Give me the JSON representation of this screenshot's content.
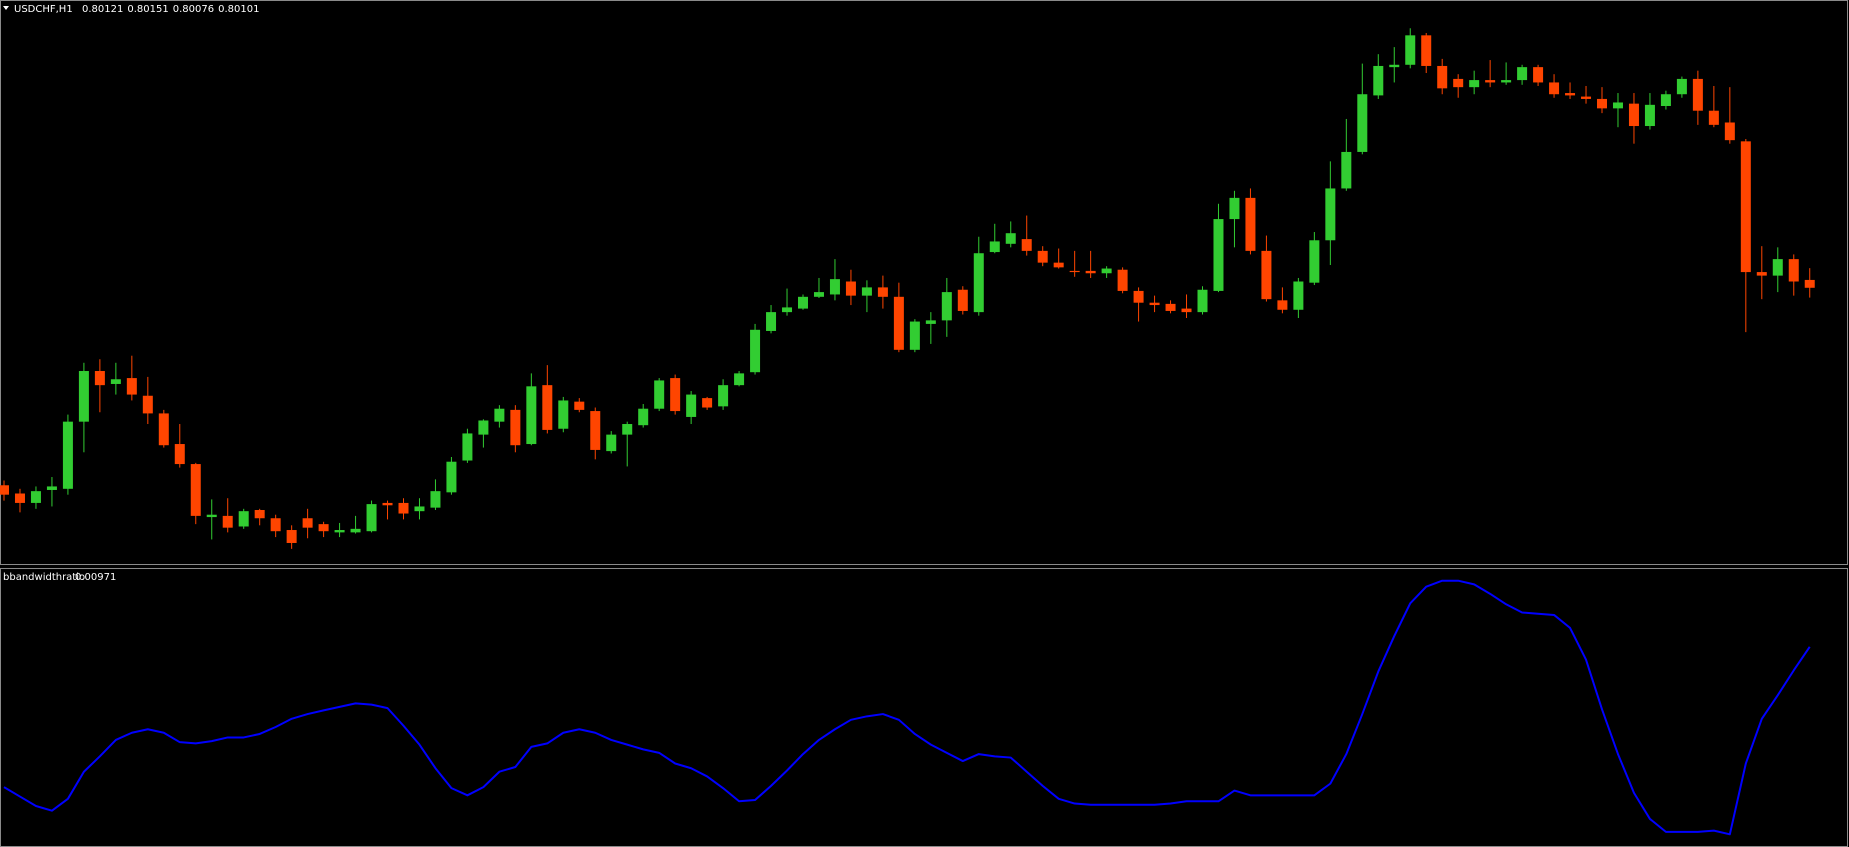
{
  "chart_data": [
    {
      "type": "candlestick",
      "title": "USDCHF,H1",
      "up_color": "#32cd32",
      "down_color": "#ff4500",
      "ylim": [
        0.794,
        0.80834
      ],
      "open": [
        0.79598,
        0.79577,
        0.79553,
        0.79586,
        0.79589,
        0.7976,
        0.79889,
        0.79856,
        0.79871,
        0.79826,
        0.79781,
        0.79703,
        0.79652,
        0.79517,
        0.7952,
        0.79493,
        0.79535,
        0.79514,
        0.79484,
        0.79514,
        0.79499,
        0.79478,
        0.79478,
        0.79481,
        0.79553,
        0.79553,
        0.79532,
        0.79541,
        0.7958,
        0.79661,
        0.79727,
        0.7976,
        0.7979,
        0.79703,
        0.79853,
        0.79742,
        0.79811,
        0.79787,
        0.79685,
        0.79727,
        0.79751,
        0.79793,
        0.79871,
        0.79772,
        0.7982,
        0.79799,
        0.79853,
        0.79886,
        0.79991,
        0.80039,
        0.80048,
        0.80078,
        0.80084,
        0.80117,
        0.80081,
        0.80102,
        0.80078,
        0.79943,
        0.80009,
        0.80018,
        0.80096,
        0.80039,
        0.80192,
        0.80213,
        0.80225,
        0.80195,
        0.80165,
        0.80144,
        0.80144,
        0.80138,
        0.80147,
        0.80093,
        0.80063,
        0.8006,
        0.80048,
        0.80039,
        0.80093,
        0.80276,
        0.8033,
        0.80195,
        0.80069,
        0.80045,
        0.80114,
        0.80222,
        0.80354,
        0.80447,
        0.80591,
        0.80663,
        0.80669,
        0.80744,
        0.80666,
        0.80633,
        0.80612,
        0.8063,
        0.80624,
        0.8063,
        0.80663,
        0.80624,
        0.80597,
        0.80588,
        0.80582,
        0.80558,
        0.8057,
        0.80513,
        0.80564,
        0.80594,
        0.80633,
        0.80552,
        0.80522,
        0.80474,
        0.80141,
        0.80132,
        0.80174,
        0.80121
      ],
      "high": [
        0.7961,
        0.79589,
        0.79595,
        0.79619,
        0.79778,
        0.7991,
        0.79919,
        0.7991,
        0.79928,
        0.79874,
        0.7979,
        0.79754,
        0.79655,
        0.79562,
        0.79565,
        0.79538,
        0.79538,
        0.79523,
        0.79496,
        0.79538,
        0.79505,
        0.79502,
        0.7952,
        0.79559,
        0.79559,
        0.79565,
        0.79565,
        0.79613,
        0.7967,
        0.79742,
        0.79766,
        0.79802,
        0.79802,
        0.79883,
        0.79904,
        0.79823,
        0.7982,
        0.79796,
        0.79736,
        0.7976,
        0.79805,
        0.79871,
        0.7988,
        0.79838,
        0.79823,
        0.79868,
        0.79889,
        0.80009,
        0.80057,
        0.80099,
        0.80084,
        0.80126,
        0.80174,
        0.80147,
        0.8012,
        0.80132,
        0.80114,
        0.80021,
        0.80039,
        0.80126,
        0.80105,
        0.80231,
        0.80264,
        0.8027,
        0.80285,
        0.80207,
        0.80201,
        0.80195,
        0.80195,
        0.80156,
        0.80153,
        0.80102,
        0.80081,
        0.80069,
        0.80084,
        0.80105,
        0.80315,
        0.80348,
        0.80354,
        0.80234,
        0.80102,
        0.80126,
        0.80243,
        0.80423,
        0.80531,
        0.80672,
        0.80696,
        0.80714,
        0.80762,
        0.8075,
        0.80684,
        0.80645,
        0.80654,
        0.80681,
        0.80675,
        0.80669,
        0.80669,
        0.80645,
        0.80624,
        0.80615,
        0.80612,
        0.80597,
        0.80597,
        0.80597,
        0.80603,
        0.80639,
        0.80654,
        0.80615,
        0.80612,
        0.8048,
        0.80207,
        0.80204,
        0.80186,
        0.80151
      ],
      "low": [
        0.79559,
        0.79529,
        0.79538,
        0.79544,
        0.79574,
        0.79682,
        0.79784,
        0.79829,
        0.79814,
        0.79754,
        0.79694,
        0.79643,
        0.79499,
        0.7946,
        0.79478,
        0.79487,
        0.79496,
        0.79466,
        0.79436,
        0.79463,
        0.79466,
        0.79466,
        0.79475,
        0.79478,
        0.79511,
        0.79511,
        0.79511,
        0.79535,
        0.79574,
        0.79655,
        0.79694,
        0.79745,
        0.79682,
        0.797,
        0.7973,
        0.79733,
        0.79784,
        0.79664,
        0.79679,
        0.79646,
        0.79745,
        0.79787,
        0.79778,
        0.79754,
        0.7979,
        0.7979,
        0.7985,
        0.7988,
        0.79985,
        0.8003,
        0.80045,
        0.80075,
        0.80069,
        0.80057,
        0.80039,
        0.80048,
        0.79937,
        0.79937,
        0.79958,
        0.79976,
        0.80033,
        0.8003,
        0.80189,
        0.80204,
        0.80183,
        0.80156,
        0.8015,
        0.80129,
        0.80126,
        0.80126,
        0.80087,
        0.80015,
        0.80039,
        0.80036,
        0.80024,
        0.80033,
        0.8009,
        0.80204,
        0.80186,
        0.80066,
        0.80036,
        0.80024,
        0.80108,
        0.80159,
        0.80348,
        0.80441,
        0.80582,
        0.80624,
        0.8066,
        0.80648,
        0.80594,
        0.80585,
        0.80594,
        0.80612,
        0.80618,
        0.80618,
        0.80615,
        0.80585,
        0.80582,
        0.8057,
        0.80546,
        0.8051,
        0.80468,
        0.80504,
        0.80555,
        0.80585,
        0.80516,
        0.8051,
        0.80468,
        0.79988,
        0.80072,
        0.8009,
        0.80081,
        0.80076
      ],
      "close": [
        0.79574,
        0.79553,
        0.79583,
        0.79595,
        0.7976,
        0.79889,
        0.79853,
        0.79868,
        0.79829,
        0.79781,
        0.797,
        0.79652,
        0.7952,
        0.79523,
        0.7949,
        0.79532,
        0.79514,
        0.79481,
        0.79451,
        0.7949,
        0.79481,
        0.79484,
        0.79487,
        0.7955,
        0.79547,
        0.79526,
        0.79544,
        0.79583,
        0.79658,
        0.7973,
        0.79763,
        0.79793,
        0.797,
        0.7985,
        0.79739,
        0.79814,
        0.7979,
        0.79688,
        0.79727,
        0.79754,
        0.79793,
        0.79865,
        0.79787,
        0.79829,
        0.79796,
        0.79853,
        0.79883,
        0.79994,
        0.80039,
        0.80051,
        0.80078,
        0.8009,
        0.80123,
        0.80081,
        0.80102,
        0.80078,
        0.79943,
        0.80015,
        0.80018,
        0.8009,
        0.80042,
        0.80189,
        0.80219,
        0.8024,
        0.80195,
        0.80165,
        0.80153,
        0.80141,
        0.80138,
        0.8015,
        0.80093,
        0.80063,
        0.80057,
        0.80042,
        0.80039,
        0.80096,
        0.80276,
        0.8033,
        0.80195,
        0.80072,
        0.80045,
        0.80117,
        0.80222,
        0.80354,
        0.80447,
        0.80594,
        0.80666,
        0.80669,
        0.80744,
        0.80666,
        0.80609,
        0.80612,
        0.8063,
        0.80624,
        0.8063,
        0.80663,
        0.80624,
        0.80594,
        0.80591,
        0.80582,
        0.80558,
        0.80573,
        0.80513,
        0.80567,
        0.80594,
        0.80633,
        0.80552,
        0.80516,
        0.80477,
        0.80141,
        0.80132,
        0.80174,
        0.80117,
        0.80101
      ]
    },
    {
      "type": "line",
      "title": "bbandwidthratio",
      "color": "#0000ff",
      "ylim": [
        0,
        0.0135
      ],
      "values": [
        0.00287,
        0.00241,
        0.00195,
        0.00172,
        0.0023,
        0.00362,
        0.00437,
        0.00517,
        0.00552,
        0.00569,
        0.00552,
        0.00506,
        0.005,
        0.00511,
        0.00529,
        0.00529,
        0.00546,
        0.0058,
        0.0062,
        0.00643,
        0.00661,
        0.00678,
        0.00695,
        0.00689,
        0.00672,
        0.00586,
        0.00494,
        0.00379,
        0.00282,
        0.00247,
        0.00287,
        0.00362,
        0.00385,
        0.00483,
        0.005,
        0.00552,
        0.00569,
        0.00552,
        0.00517,
        0.00494,
        0.00471,
        0.00454,
        0.00402,
        0.00379,
        0.00339,
        0.00282,
        0.00218,
        0.00224,
        0.00293,
        0.00368,
        0.00448,
        0.00517,
        0.00569,
        0.00615,
        0.00632,
        0.00643,
        0.00615,
        0.00546,
        0.00494,
        0.00454,
        0.00414,
        0.00448,
        0.00437,
        0.00431,
        0.00362,
        0.00293,
        0.0023,
        0.00207,
        0.00201,
        0.00201,
        0.00201,
        0.00201,
        0.00201,
        0.00207,
        0.00218,
        0.00218,
        0.00218,
        0.0027,
        0.00247,
        0.00247,
        0.00247,
        0.00247,
        0.00247,
        0.00304,
        0.00448,
        0.00643,
        0.0085,
        0.01023,
        0.01183,
        0.01264,
        0.01293,
        0.01293,
        0.01275,
        0.01229,
        0.01178,
        0.01138,
        0.01132,
        0.01126,
        0.01063,
        0.00908,
        0.00666,
        0.00448,
        0.00259,
        0.00132,
        0.00069,
        0.00069,
        0.00069,
        0.00075,
        0.00057,
        0.00402,
        0.0062,
        0.00735,
        0.00856,
        0.00971
      ]
    }
  ]
}
